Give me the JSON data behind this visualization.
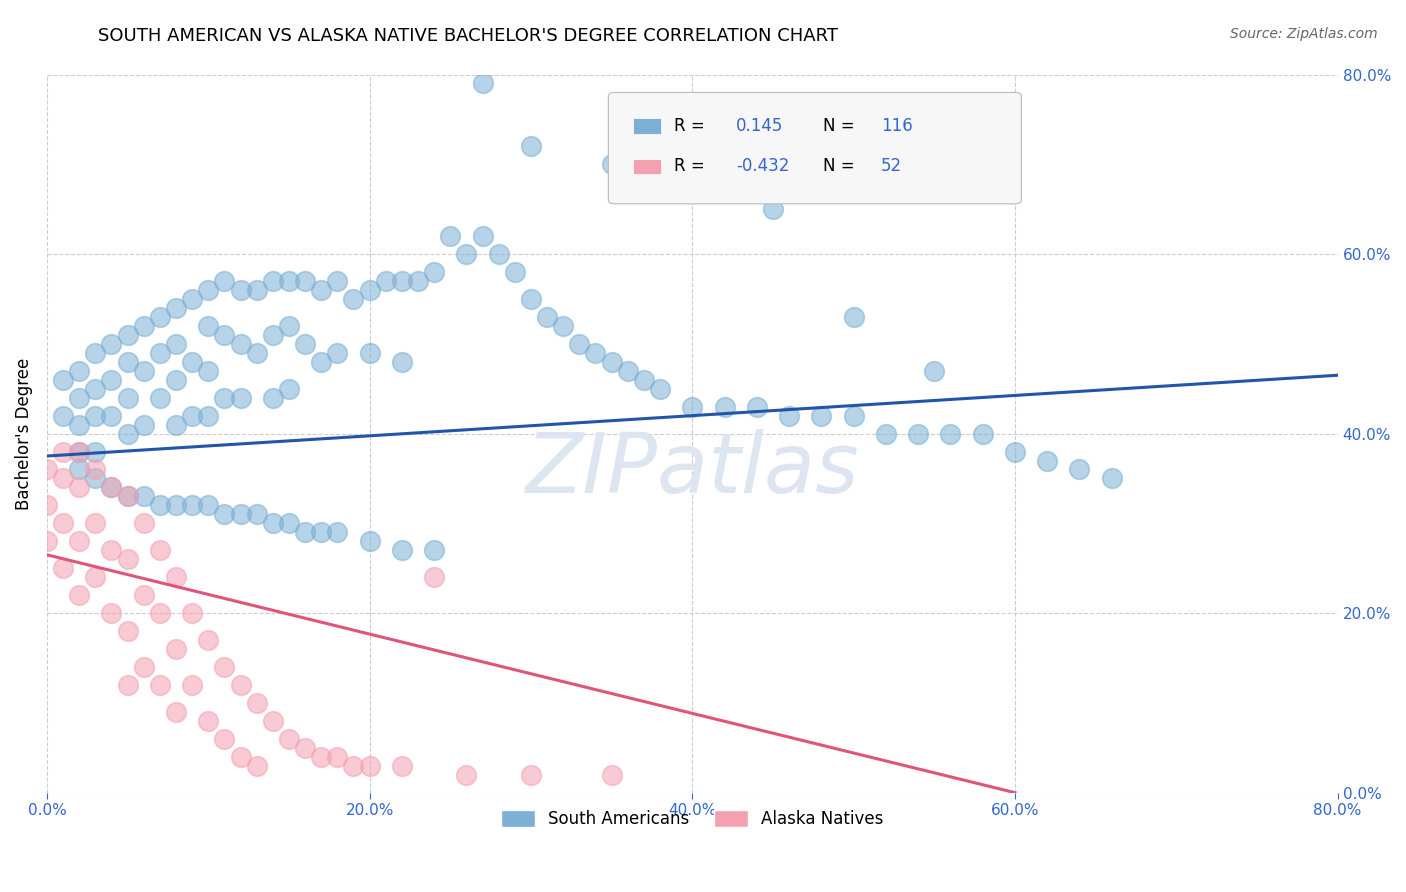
{
  "title": "SOUTH AMERICAN VS ALASKA NATIVE BACHELOR'S DEGREE CORRELATION CHART",
  "source": "Source: ZipAtlas.com",
  "ylabel_label": "Bachelor's Degree",
  "watermark": "ZIPatlas",
  "legend_blue_r_val": "0.145",
  "legend_blue_n_val": "116",
  "legend_pink_r_val": "-0.432",
  "legend_pink_n_val": "52",
  "blue_color": "#7bafd4",
  "pink_color": "#f4a0b0",
  "blue_line_color": "#2255aa",
  "pink_line_color": "#e05577",
  "blue_scatter_x": [
    0.01,
    0.01,
    0.02,
    0.02,
    0.02,
    0.02,
    0.03,
    0.03,
    0.03,
    0.03,
    0.04,
    0.04,
    0.04,
    0.05,
    0.05,
    0.05,
    0.05,
    0.06,
    0.06,
    0.06,
    0.07,
    0.07,
    0.07,
    0.08,
    0.08,
    0.08,
    0.08,
    0.09,
    0.09,
    0.09,
    0.1,
    0.1,
    0.1,
    0.1,
    0.11,
    0.11,
    0.11,
    0.12,
    0.12,
    0.12,
    0.13,
    0.13,
    0.14,
    0.14,
    0.14,
    0.15,
    0.15,
    0.15,
    0.16,
    0.16,
    0.17,
    0.17,
    0.18,
    0.18,
    0.19,
    0.2,
    0.2,
    0.21,
    0.22,
    0.22,
    0.23,
    0.24,
    0.25,
    0.26,
    0.27,
    0.28,
    0.29,
    0.3,
    0.31,
    0.32,
    0.33,
    0.34,
    0.35,
    0.36,
    0.37,
    0.38,
    0.4,
    0.42,
    0.44,
    0.46,
    0.48,
    0.5,
    0.52,
    0.54,
    0.56,
    0.58,
    0.6,
    0.62,
    0.64,
    0.66,
    0.02,
    0.03,
    0.04,
    0.05,
    0.06,
    0.07,
    0.08,
    0.09,
    0.1,
    0.11,
    0.12,
    0.13,
    0.14,
    0.15,
    0.16,
    0.17,
    0.18,
    0.2,
    0.22,
    0.24,
    0.27,
    0.3,
    0.35,
    0.4,
    0.45,
    0.5,
    0.55
  ],
  "blue_scatter_y": [
    0.46,
    0.42,
    0.47,
    0.44,
    0.41,
    0.38,
    0.49,
    0.45,
    0.42,
    0.38,
    0.5,
    0.46,
    0.42,
    0.51,
    0.48,
    0.44,
    0.4,
    0.52,
    0.47,
    0.41,
    0.53,
    0.49,
    0.44,
    0.54,
    0.5,
    0.46,
    0.41,
    0.55,
    0.48,
    0.42,
    0.56,
    0.52,
    0.47,
    0.42,
    0.57,
    0.51,
    0.44,
    0.56,
    0.5,
    0.44,
    0.56,
    0.49,
    0.57,
    0.51,
    0.44,
    0.57,
    0.52,
    0.45,
    0.57,
    0.5,
    0.56,
    0.48,
    0.57,
    0.49,
    0.55,
    0.56,
    0.49,
    0.57,
    0.57,
    0.48,
    0.57,
    0.58,
    0.62,
    0.6,
    0.62,
    0.6,
    0.58,
    0.55,
    0.53,
    0.52,
    0.5,
    0.49,
    0.48,
    0.47,
    0.46,
    0.45,
    0.43,
    0.43,
    0.43,
    0.42,
    0.42,
    0.42,
    0.4,
    0.4,
    0.4,
    0.4,
    0.38,
    0.37,
    0.36,
    0.35,
    0.36,
    0.35,
    0.34,
    0.33,
    0.33,
    0.32,
    0.32,
    0.32,
    0.32,
    0.31,
    0.31,
    0.31,
    0.3,
    0.3,
    0.29,
    0.29,
    0.29,
    0.28,
    0.27,
    0.27,
    0.79,
    0.72,
    0.7,
    0.67,
    0.65,
    0.53,
    0.47
  ],
  "pink_scatter_x": [
    0.0,
    0.0,
    0.0,
    0.01,
    0.01,
    0.01,
    0.01,
    0.02,
    0.02,
    0.02,
    0.02,
    0.03,
    0.03,
    0.03,
    0.04,
    0.04,
    0.04,
    0.05,
    0.05,
    0.05,
    0.05,
    0.06,
    0.06,
    0.06,
    0.07,
    0.07,
    0.07,
    0.08,
    0.08,
    0.08,
    0.09,
    0.09,
    0.1,
    0.1,
    0.11,
    0.11,
    0.12,
    0.12,
    0.13,
    0.13,
    0.14,
    0.15,
    0.16,
    0.17,
    0.18,
    0.19,
    0.2,
    0.22,
    0.24,
    0.26,
    0.3,
    0.35
  ],
  "pink_scatter_y": [
    0.36,
    0.32,
    0.28,
    0.38,
    0.35,
    0.3,
    0.25,
    0.38,
    0.34,
    0.28,
    0.22,
    0.36,
    0.3,
    0.24,
    0.34,
    0.27,
    0.2,
    0.33,
    0.26,
    0.18,
    0.12,
    0.3,
    0.22,
    0.14,
    0.27,
    0.2,
    0.12,
    0.24,
    0.16,
    0.09,
    0.2,
    0.12,
    0.17,
    0.08,
    0.14,
    0.06,
    0.12,
    0.04,
    0.1,
    0.03,
    0.08,
    0.06,
    0.05,
    0.04,
    0.04,
    0.03,
    0.03,
    0.03,
    0.24,
    0.02,
    0.02,
    0.02
  ],
  "blue_trend_x": [
    0.0,
    0.8
  ],
  "blue_trend_y": [
    0.375,
    0.465
  ],
  "pink_trend_x": [
    0.0,
    0.6
  ],
  "pink_trend_y": [
    0.265,
    0.0
  ],
  "xlim": [
    0.0,
    0.8
  ],
  "ylim": [
    0.0,
    0.8
  ],
  "xticks": [
    0.0,
    0.2,
    0.4,
    0.6,
    0.8
  ],
  "yticks": [
    0.0,
    0.2,
    0.4,
    0.6,
    0.8
  ],
  "title_fontsize": 13,
  "source_fontsize": 10,
  "axis_val_color": "#3366cc",
  "watermark_color": "#dde5f0",
  "watermark_fontsize": 60,
  "grid_color": "#cccccc",
  "dot_size": 200,
  "dot_alpha": 0.55,
  "dot_edgewidth": 1.2
}
